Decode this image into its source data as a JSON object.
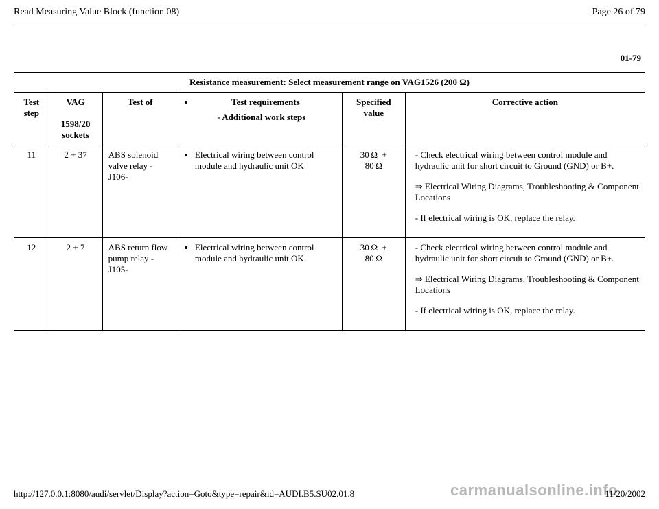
{
  "header": {
    "title": "Read Measuring Value Block (function 08)",
    "page_label": "Page 26 of 79"
  },
  "section_number": "01-79",
  "table": {
    "title": "Resistance measurement: Select measurement range on VAG1526 (200 Ω)",
    "headers": {
      "step": "Test step",
      "vag_top": "VAG",
      "vag_bot": "1598/20 sockets",
      "test_of": "Test of",
      "req_bullet": "Test requirements",
      "req_add": "- Additional work steps",
      "spec": "Specified value",
      "corrective": "Corrective action"
    },
    "rows": [
      {
        "step": "11",
        "vag": "2 + 37",
        "test_of": "ABS solenoid valve relay -J106-",
        "req": "Electrical wiring between control module and hydraulic unit OK",
        "spec_top": "30 Ω  +",
        "spec_bot": "80 Ω",
        "corr1": "- Check electrical wiring between control module and hydraulic unit for short circuit to Ground (GND) or B+.",
        "corr2": "Electrical Wiring Diagrams, Troubleshooting & Component Locations",
        "corr3": "- If electrical wiring is OK, replace the relay."
      },
      {
        "step": "12",
        "vag": "2 + 7",
        "test_of": "ABS return flow pump relay -J105-",
        "req": "Electrical wiring between control module and hydraulic unit OK",
        "spec_top": "30 Ω  +",
        "spec_bot": "80 Ω",
        "corr1": "- Check electrical wiring between control module and hydraulic unit for short circuit to Ground (GND) or B+.",
        "corr2": "Electrical Wiring Diagrams, Troubleshooting & Component Locations",
        "corr3": "- If electrical wiring is OK, replace the relay."
      }
    ]
  },
  "footer": {
    "url": "http://127.0.0.1:8080/audi/servlet/Display?action=Goto&type=repair&id=AUDI.B5.SU02.01.8",
    "date": "11/20/2002"
  },
  "watermark": "carmanualsonline.info",
  "colors": {
    "text": "#000000",
    "background": "#ffffff",
    "watermark": "#b8b8b8",
    "border": "#000000"
  },
  "typography": {
    "body_family": "Times New Roman",
    "body_size_pt": 10,
    "header_size_pt": 10,
    "bold_headers": true
  }
}
